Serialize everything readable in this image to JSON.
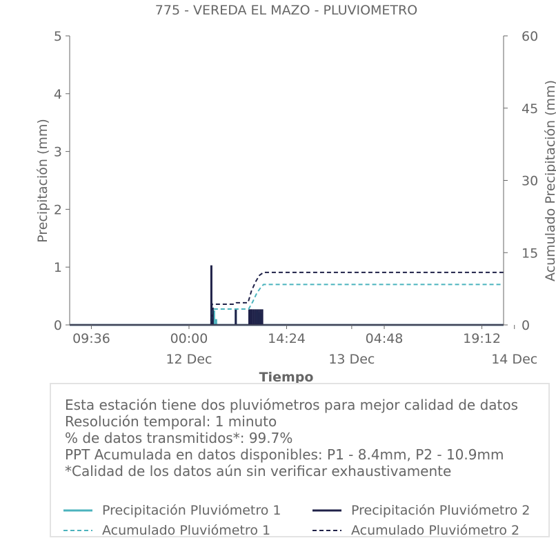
{
  "chart_data": {
    "type": "line",
    "title": "775 - VEREDA EL MAZO - PLUVIOMETRO",
    "xlabel": "Tiempo",
    "ylabel": "Precipitación (mm)",
    "y2label": "Acumulado Precipitación (mm)",
    "ylim": [
      0,
      5
    ],
    "y2lim": [
      0,
      60
    ],
    "yticks": [
      "0",
      "1",
      "2",
      "3",
      "4",
      "5"
    ],
    "y2ticks": [
      "0",
      "15",
      "30",
      "45",
      "60"
    ],
    "xrange_hours": [
      -17.6,
      46.4
    ],
    "xticks": [
      {
        "hour": -14.4,
        "time": "09:36",
        "date": ""
      },
      {
        "hour": 0,
        "time": "00:00",
        "date": "12 Dec"
      },
      {
        "hour": 14.4,
        "time": "14:24",
        "date": ""
      },
      {
        "hour": 24,
        "time": "",
        "date": "13 Dec"
      },
      {
        "hour": 28.8,
        "time": "04:48",
        "date": ""
      },
      {
        "hour": 43.2,
        "time": "19:12",
        "date": ""
      },
      {
        "hour": 48,
        "time": "",
        "date": "14 Dec"
      }
    ],
    "grid": false,
    "legend_placement": "bottom",
    "series": [
      {
        "name": "Precipitación Pluviómetro 1",
        "axis": "left",
        "style": "solid",
        "color": "#4bb3bd",
        "spikes": [
          [
            3.7,
            0.25
          ],
          [
            4.0,
            0.1
          ],
          [
            6.9,
            0.26
          ],
          [
            9.2,
            0.26
          ],
          [
            9.6,
            0.24
          ],
          [
            10.0,
            0.25
          ],
          [
            10.4,
            0.22
          ],
          [
            10.7,
            0.2
          ]
        ]
      },
      {
        "name": "Precipitación Pluviómetro 2",
        "axis": "left",
        "style": "solid",
        "color": "#1f2148",
        "spikes": [
          [
            3.3,
            1.03
          ],
          [
            3.5,
            0.3
          ],
          [
            6.9,
            0.27
          ],
          [
            8.9,
            0.27
          ],
          [
            9.1,
            0.27
          ],
          [
            9.3,
            0.27
          ],
          [
            9.6,
            0.27
          ],
          [
            9.9,
            0.27
          ],
          [
            10.2,
            0.27
          ],
          [
            10.5,
            0.27
          ],
          [
            10.8,
            0.27
          ]
        ]
      },
      {
        "name": "Acumulado Pluviómetro 1",
        "axis": "right",
        "style": "dashed",
        "color": "#4bb3bd",
        "x": [
          -17.6,
          3.2,
          3.4,
          8.8,
          9.4,
          10.0,
          10.6,
          11.0,
          46.4
        ],
        "values": [
          0,
          0,
          3.3,
          3.3,
          4.8,
          6.6,
          7.8,
          8.4,
          8.4
        ]
      },
      {
        "name": "Acumulado Pluviómetro 2",
        "axis": "right",
        "style": "dashed",
        "color": "#1f2148",
        "x": [
          -17.6,
          3.2,
          3.4,
          6.8,
          7.0,
          8.7,
          9.2,
          9.8,
          10.4,
          11.0,
          46.4
        ],
        "values": [
          0,
          0,
          4.3,
          4.3,
          4.6,
          4.6,
          7.0,
          8.9,
          10.3,
          10.9,
          10.9
        ]
      }
    ]
  },
  "info": {
    "lines": [
      "Esta estación tiene dos pluviómetros para mejor calidad de datos",
      "Resolución temporal: 1 minuto",
      "% de datos transmitidos*: 99.7%",
      "PPT Acumulada en datos disponibles: P1 - 8.4mm, P2 - 10.9mm",
      "*Calidad de los datos aún sin verificar exhaustivamente"
    ]
  },
  "legend": {
    "items": [
      {
        "label": "Precipitación Pluviómetro 1",
        "color": "#4bb3bd",
        "style": "solid"
      },
      {
        "label": "Precipitación Pluviómetro 2",
        "color": "#1f2148",
        "style": "solid"
      },
      {
        "label": "Acumulado Pluviómetro 1",
        "color": "#4bb3bd",
        "style": "dashed"
      },
      {
        "label": "Acumulado Pluviómetro 2",
        "color": "#1f2148",
        "style": "dashed"
      }
    ]
  }
}
